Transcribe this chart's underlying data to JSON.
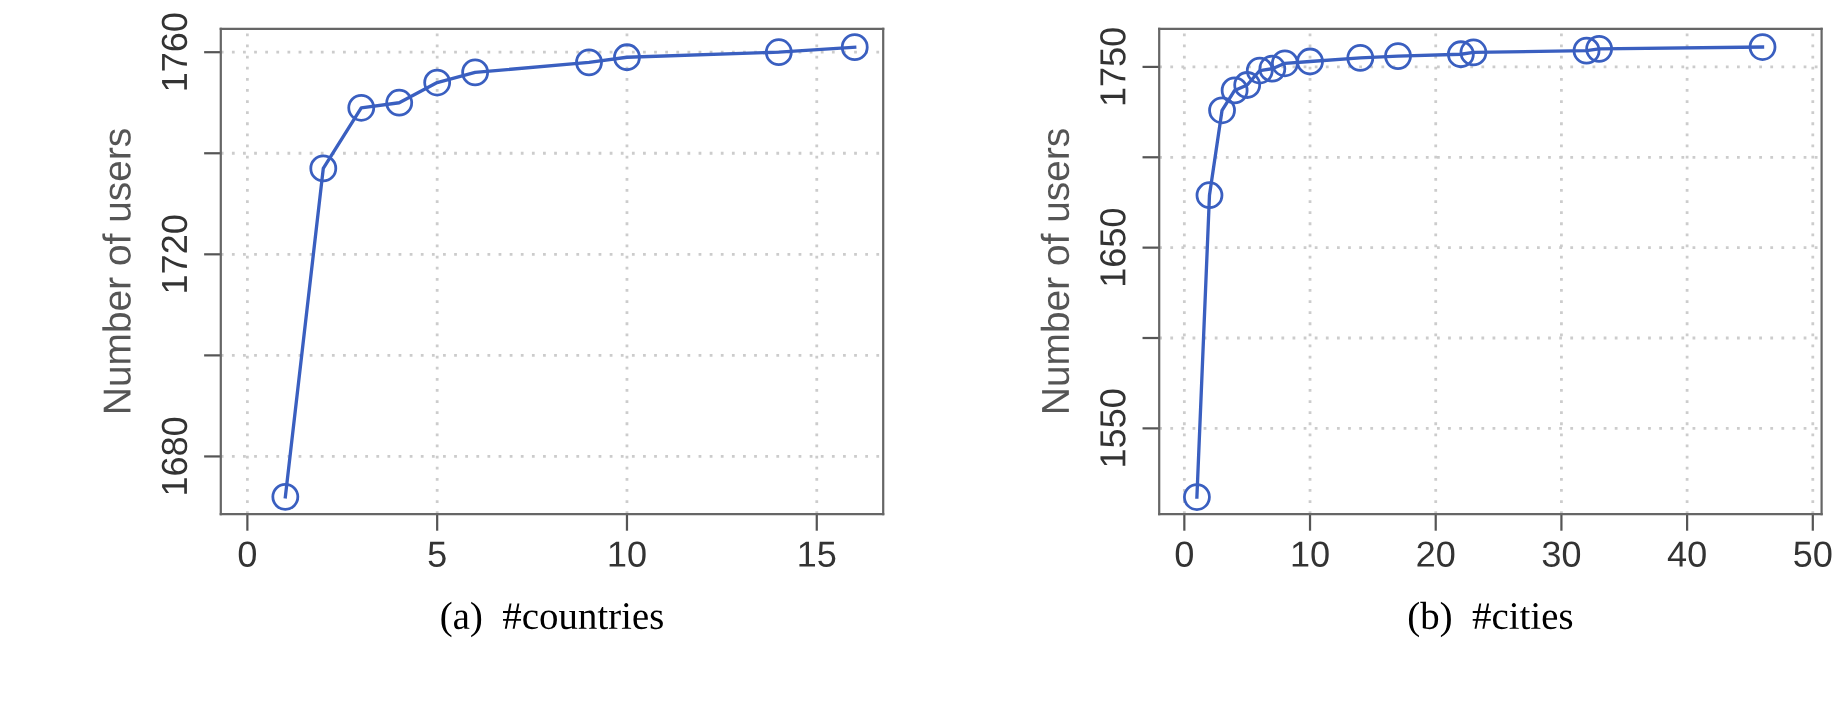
{
  "chart_data": [
    {
      "type": "line",
      "xlabel": "(a)  #countries",
      "ylabel": "Number of users",
      "x": [
        1,
        2,
        3,
        4,
        5,
        6,
        9,
        10,
        14,
        16
      ],
      "series": [
        {
          "color": "#3a5fc0",
          "values": [
            1672,
            1737,
            1749,
            1750,
            1754,
            1756,
            1758,
            1759,
            1760,
            1761
          ]
        }
      ],
      "xlim": [
        -0.7,
        16.75
      ],
      "ylim": [
        1668.6,
        1764.6
      ],
      "xticks": [
        0,
        5,
        10,
        15
      ],
      "yticks": [
        {
          "value": 1680,
          "label": "1680"
        },
        {
          "value": 1700,
          "label": null
        },
        {
          "value": 1720,
          "label": "1720"
        },
        {
          "value": 1740,
          "label": null
        },
        {
          "value": 1760,
          "label": "1760"
        }
      ],
      "grid": true,
      "marker": "circle",
      "line_style": "solid"
    },
    {
      "type": "line",
      "xlabel": "(b)  #cities",
      "ylabel": "Number of users",
      "x": [
        1,
        2,
        3,
        4,
        5,
        6,
        7,
        8,
        10,
        14,
        17,
        22,
        23,
        32,
        33,
        46
      ],
      "series": [
        {
          "color": "#3a5fc0",
          "values": [
            1512,
            1679,
            1726,
            1737,
            1740,
            1748,
            1749,
            1752,
            1753,
            1755,
            1756,
            1757,
            1758,
            1759,
            1760,
            1761
          ]
        }
      ],
      "xlim": [
        -2.0,
        50.7
      ],
      "ylim": [
        1502.6,
        1771
      ],
      "xticks": [
        0,
        10,
        20,
        30,
        40,
        50
      ],
      "yticks": [
        {
          "value": 1550,
          "label": "1550"
        },
        {
          "value": 1600,
          "label": null
        },
        {
          "value": 1650,
          "label": "1650"
        },
        {
          "value": 1700,
          "label": null
        },
        {
          "value": 1750,
          "label": "1750"
        }
      ],
      "grid": true,
      "marker": "circle",
      "line_style": "solid"
    }
  ]
}
